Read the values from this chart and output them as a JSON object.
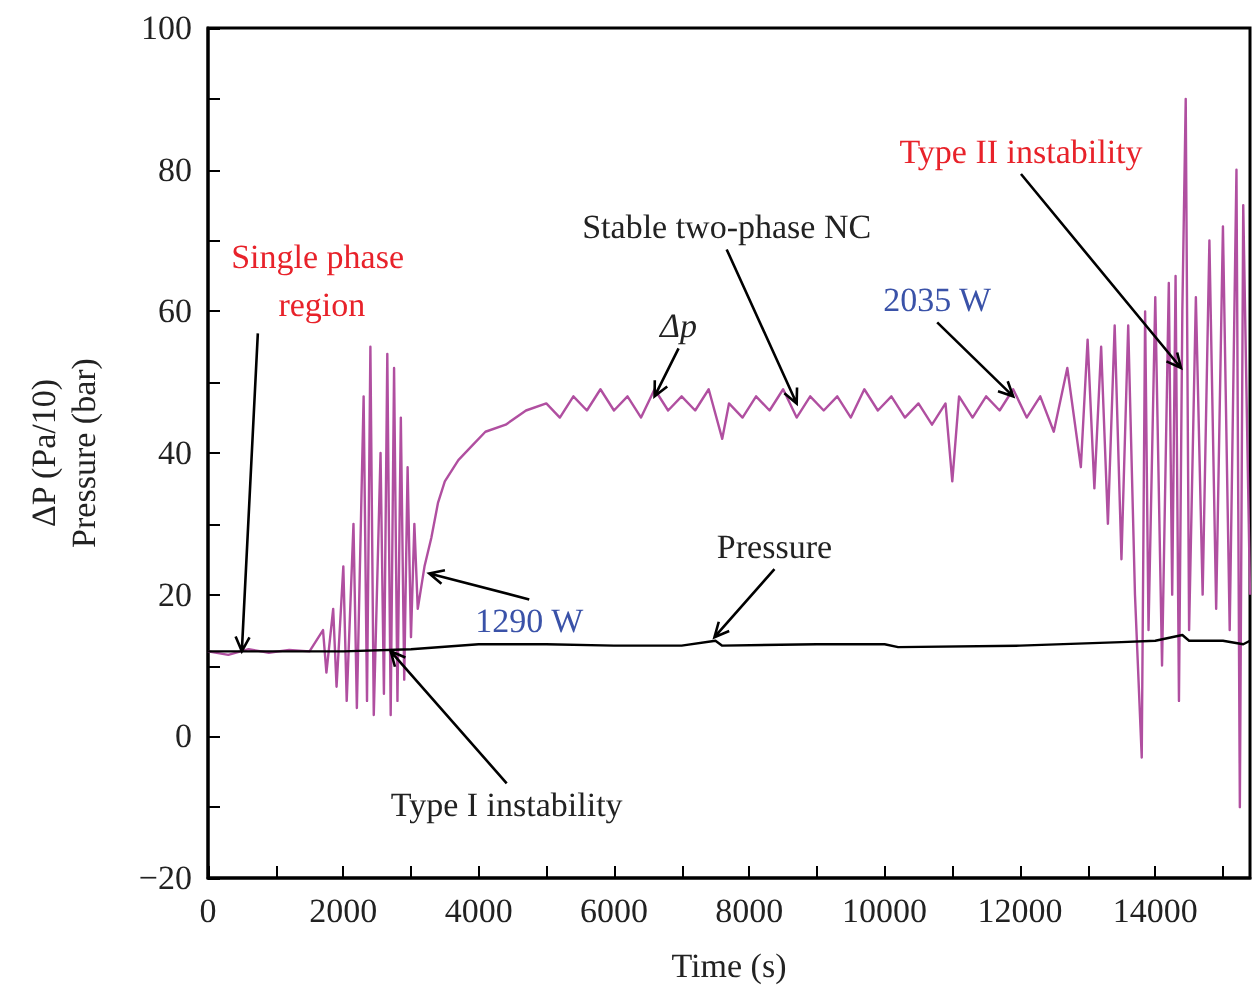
{
  "chart_data": {
    "type": "line",
    "xlabel": "Time (s)",
    "ylabel": "ΔP (Pa/10)\nPressure (bar)",
    "xlim": [
      0,
      15400
    ],
    "ylim": [
      -20,
      100
    ],
    "xticks": [
      0,
      {
        "value": 1000,
        "label": null
      },
      2000,
      {
        "value": 3000,
        "label": null
      },
      4000,
      {
        "value": 5000,
        "label": null
      },
      6000,
      {
        "value": 7000,
        "label": null
      },
      8000,
      {
        "value": 9000,
        "label": null
      },
      10000,
      {
        "value": 11000,
        "label": null
      },
      12000,
      {
        "value": 13000,
        "label": null
      },
      14000,
      {
        "value": 15000,
        "label": null
      }
    ],
    "yticks": [
      {
        "value": -20,
        "label": "−20"
      },
      {
        "value": -10,
        "label": null
      },
      0,
      {
        "value": 10,
        "label": null
      },
      20,
      {
        "value": 30,
        "label": null
      },
      40,
      {
        "value": 50,
        "label": null
      },
      60,
      {
        "value": 70,
        "label": null
      },
      80,
      {
        "value": 90,
        "label": null
      },
      100
    ],
    "grid": false,
    "marker": "none",
    "line_style": "solid",
    "series": [
      {
        "color": "#b04fa0",
        "x": [
          0,
          300,
          600,
          900,
          1200,
          1500,
          1700,
          1750,
          1850,
          1900,
          2000,
          2050,
          2150,
          2200,
          2300,
          2350,
          2400,
          2450,
          2550,
          2600,
          2650,
          2700,
          2750,
          2800,
          2850,
          2900,
          2950,
          3000,
          3050,
          3100,
          3200,
          3300,
          3400,
          3500,
          3700,
          3900,
          4100,
          4400,
          4700,
          5000,
          5200,
          5400,
          5600,
          5800,
          6000,
          6200,
          6400,
          6600,
          6800,
          7000,
          7200,
          7400,
          7600,
          7700,
          7900,
          8100,
          8300,
          8500,
          8700,
          8900,
          9100,
          9300,
          9500,
          9700,
          9900,
          10100,
          10300,
          10500,
          10700,
          10900,
          11000,
          11100,
          11300,
          11500,
          11700,
          11900,
          12100,
          12300,
          12500,
          12700,
          12900,
          13000,
          13100,
          13200,
          13300,
          13400,
          13500,
          13600,
          13700,
          13800,
          13850,
          13900,
          14000,
          14100,
          14200,
          14250,
          14300,
          14350,
          14400,
          14450,
          14500,
          14600,
          14700,
          14800,
          14900,
          15000,
          15100,
          15200,
          15250,
          15300,
          15400
        ],
        "values": [
          12,
          11.5,
          12.3,
          11.8,
          12.2,
          12,
          15,
          9,
          18,
          7,
          24,
          5,
          30,
          4,
          48,
          5,
          55,
          3,
          40,
          6,
          54,
          3,
          52,
          5,
          45,
          8,
          38,
          14,
          30,
          18,
          24,
          28,
          33,
          36,
          39,
          41,
          43,
          44,
          46,
          47,
          45,
          48,
          46,
          49,
          46,
          48,
          45,
          49,
          46,
          48,
          46,
          49,
          42,
          47,
          45,
          48,
          46,
          49,
          45,
          48,
          46,
          48,
          45,
          49,
          46,
          48,
          45,
          47,
          44,
          47,
          36,
          48,
          45,
          48,
          46,
          49,
          45,
          48,
          43,
          52,
          38,
          56,
          35,
          55,
          30,
          58,
          25,
          58,
          20,
          -3,
          60,
          15,
          62,
          10,
          64,
          20,
          65,
          5,
          60,
          90,
          15,
          62,
          20,
          70,
          18,
          72,
          15,
          80,
          -10,
          75,
          20
        ]
      },
      {
        "color": "#000000",
        "x": [
          0,
          1000,
          2000,
          3000,
          4000,
          5000,
          6000,
          7000,
          7500,
          7600,
          9000,
          10000,
          10200,
          12000,
          13500,
          14000,
          14400,
          14500,
          15000,
          15300,
          15400
        ],
        "values": [
          12,
          12,
          12,
          12.3,
          13,
          13,
          12.8,
          12.8,
          13.5,
          12.8,
          13,
          13,
          12.6,
          12.8,
          13.3,
          13.5,
          14.3,
          13.5,
          13.5,
          13,
          13.5
        ]
      }
    ],
    "annotations": [
      {
        "text": "Single phase region",
        "x": 500,
        "y": 12
      },
      {
        "text": "Δp",
        "x": 6600,
        "y": 48
      },
      {
        "text": "Stable two-phase NC",
        "x": 8700,
        "y": 47
      },
      {
        "text": "2035 W",
        "x": 11900,
        "y": 48
      },
      {
        "text": "Type II instability",
        "x": 14380,
        "y": 52
      },
      {
        "text": "1290 W",
        "x": 3270,
        "y": 23
      },
      {
        "text": "Pressure",
        "x": 7485,
        "y": 14
      },
      {
        "text": "Type I instability",
        "x": 2700,
        "y": 12
      }
    ]
  }
}
